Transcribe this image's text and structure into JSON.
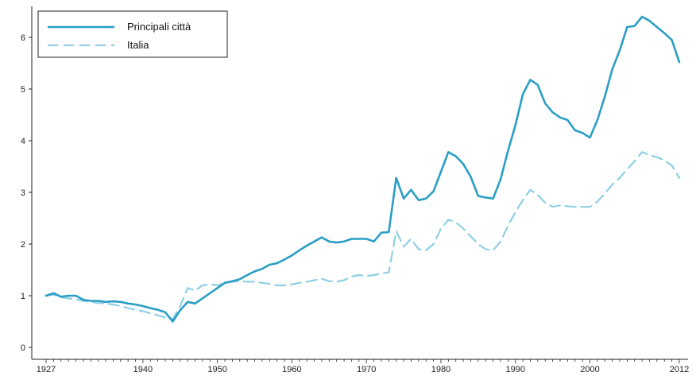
{
  "chart_data": {
    "type": "line",
    "title": "",
    "xlabel": "",
    "ylabel": "",
    "xlim": [
      1927,
      2012
    ],
    "ylim": [
      0,
      6.5
    ],
    "x_ticks": [
      1927,
      1940,
      1950,
      1960,
      1970,
      1980,
      1990,
      2000,
      2012
    ],
    "y_ticks": [
      0,
      1,
      2,
      3,
      4,
      5,
      6
    ],
    "grid": false,
    "legend_position": "top-left",
    "series": [
      {
        "name": "Principali città",
        "style": "solid",
        "color": "#2a9ec4",
        "points": [
          [
            1927,
            1.0
          ],
          [
            1928,
            1.05
          ],
          [
            1929,
            0.98
          ],
          [
            1930,
            1.0
          ],
          [
            1931,
            1.0
          ],
          [
            1932,
            0.92
          ],
          [
            1933,
            0.9
          ],
          [
            1934,
            0.9
          ],
          [
            1935,
            0.88
          ],
          [
            1936,
            0.89
          ],
          [
            1937,
            0.88
          ],
          [
            1938,
            0.85
          ],
          [
            1939,
            0.83
          ],
          [
            1940,
            0.8
          ],
          [
            1941,
            0.76
          ],
          [
            1942,
            0.73
          ],
          [
            1943,
            0.68
          ],
          [
            1944,
            0.5
          ],
          [
            1945,
            0.72
          ],
          [
            1946,
            0.88
          ],
          [
            1947,
            0.85
          ],
          [
            1948,
            0.95
          ],
          [
            1949,
            1.05
          ],
          [
            1950,
            1.15
          ],
          [
            1951,
            1.25
          ],
          [
            1952,
            1.28
          ],
          [
            1953,
            1.32
          ],
          [
            1954,
            1.4
          ],
          [
            1955,
            1.47
          ],
          [
            1956,
            1.52
          ],
          [
            1957,
            1.6
          ],
          [
            1958,
            1.63
          ],
          [
            1959,
            1.7
          ],
          [
            1960,
            1.78
          ],
          [
            1961,
            1.88
          ],
          [
            1962,
            1.97
          ],
          [
            1963,
            2.05
          ],
          [
            1964,
            2.13
          ],
          [
            1965,
            2.05
          ],
          [
            1966,
            2.03
          ],
          [
            1967,
            2.05
          ],
          [
            1968,
            2.1
          ],
          [
            1969,
            2.1
          ],
          [
            1970,
            2.1
          ],
          [
            1971,
            2.05
          ],
          [
            1972,
            2.22
          ],
          [
            1973,
            2.23
          ],
          [
            1974,
            3.28
          ],
          [
            1975,
            2.88
          ],
          [
            1976,
            3.05
          ],
          [
            1977,
            2.85
          ],
          [
            1978,
            2.88
          ],
          [
            1979,
            3.02
          ],
          [
            1980,
            3.4
          ],
          [
            1981,
            3.78
          ],
          [
            1982,
            3.7
          ],
          [
            1983,
            3.55
          ],
          [
            1984,
            3.3
          ],
          [
            1985,
            2.93
          ],
          [
            1986,
            2.9
          ],
          [
            1987,
            2.88
          ],
          [
            1988,
            3.25
          ],
          [
            1989,
            3.8
          ],
          [
            1990,
            4.3
          ],
          [
            1991,
            4.9
          ],
          [
            1992,
            5.18
          ],
          [
            1993,
            5.08
          ],
          [
            1994,
            4.72
          ],
          [
            1995,
            4.55
          ],
          [
            1996,
            4.45
          ],
          [
            1997,
            4.4
          ],
          [
            1998,
            4.2
          ],
          [
            1999,
            4.15
          ],
          [
            2000,
            4.06
          ],
          [
            2001,
            4.4
          ],
          [
            2002,
            4.85
          ],
          [
            2003,
            5.38
          ],
          [
            2004,
            5.75
          ],
          [
            2005,
            6.2
          ],
          [
            2006,
            6.22
          ],
          [
            2007,
            6.4
          ],
          [
            2008,
            6.32
          ],
          [
            2009,
            6.2
          ],
          [
            2010,
            6.08
          ],
          [
            2011,
            5.95
          ],
          [
            2012,
            5.52
          ]
        ]
      },
      {
        "name": "Italia",
        "style": "dashed",
        "color": "#8fcfe3",
        "points": [
          [
            1927,
            1.0
          ],
          [
            1928,
            1.02
          ],
          [
            1929,
            0.97
          ],
          [
            1930,
            0.95
          ],
          [
            1931,
            0.93
          ],
          [
            1932,
            0.9
          ],
          [
            1933,
            0.88
          ],
          [
            1934,
            0.86
          ],
          [
            1935,
            0.85
          ],
          [
            1936,
            0.83
          ],
          [
            1937,
            0.8
          ],
          [
            1938,
            0.76
          ],
          [
            1939,
            0.73
          ],
          [
            1940,
            0.7
          ],
          [
            1941,
            0.66
          ],
          [
            1942,
            0.62
          ],
          [
            1943,
            0.58
          ],
          [
            1944,
            0.55
          ],
          [
            1945,
            0.8
          ],
          [
            1946,
            1.15
          ],
          [
            1947,
            1.1
          ],
          [
            1948,
            1.2
          ],
          [
            1949,
            1.22
          ],
          [
            1950,
            1.2
          ],
          [
            1951,
            1.25
          ],
          [
            1952,
            1.27
          ],
          [
            1953,
            1.28
          ],
          [
            1954,
            1.27
          ],
          [
            1955,
            1.27
          ],
          [
            1956,
            1.25
          ],
          [
            1957,
            1.23
          ],
          [
            1958,
            1.2
          ],
          [
            1959,
            1.2
          ],
          [
            1960,
            1.22
          ],
          [
            1961,
            1.25
          ],
          [
            1962,
            1.27
          ],
          [
            1963,
            1.3
          ],
          [
            1964,
            1.33
          ],
          [
            1965,
            1.28
          ],
          [
            1966,
            1.27
          ],
          [
            1967,
            1.3
          ],
          [
            1968,
            1.37
          ],
          [
            1969,
            1.4
          ],
          [
            1970,
            1.38
          ],
          [
            1971,
            1.4
          ],
          [
            1972,
            1.43
          ],
          [
            1973,
            1.45
          ],
          [
            1974,
            2.25
          ],
          [
            1975,
            1.95
          ],
          [
            1976,
            2.1
          ],
          [
            1977,
            1.9
          ],
          [
            1978,
            1.88
          ],
          [
            1979,
            2.0
          ],
          [
            1980,
            2.3
          ],
          [
            1981,
            2.47
          ],
          [
            1982,
            2.42
          ],
          [
            1983,
            2.3
          ],
          [
            1984,
            2.15
          ],
          [
            1985,
            2.0
          ],
          [
            1986,
            1.9
          ],
          [
            1987,
            1.88
          ],
          [
            1988,
            2.05
          ],
          [
            1989,
            2.35
          ],
          [
            1990,
            2.62
          ],
          [
            1991,
            2.85
          ],
          [
            1992,
            3.05
          ],
          [
            1993,
            2.95
          ],
          [
            1994,
            2.8
          ],
          [
            1995,
            2.72
          ],
          [
            1996,
            2.75
          ],
          [
            1997,
            2.73
          ],
          [
            1998,
            2.72
          ],
          [
            1999,
            2.72
          ],
          [
            2000,
            2.72
          ],
          [
            2001,
            2.82
          ],
          [
            2002,
            2.98
          ],
          [
            2003,
            3.15
          ],
          [
            2004,
            3.28
          ],
          [
            2005,
            3.45
          ],
          [
            2006,
            3.6
          ],
          [
            2007,
            3.78
          ],
          [
            2008,
            3.72
          ],
          [
            2009,
            3.68
          ],
          [
            2010,
            3.62
          ],
          [
            2011,
            3.52
          ],
          [
            2012,
            3.28
          ]
        ]
      }
    ]
  }
}
